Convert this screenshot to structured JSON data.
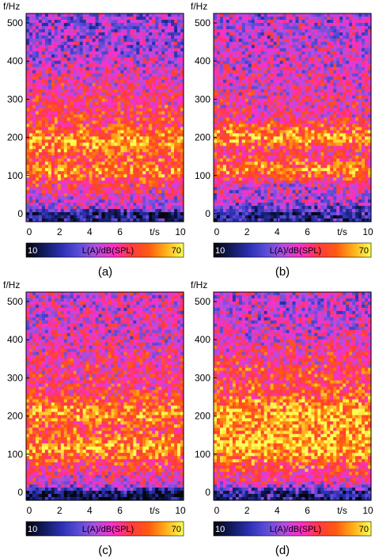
{
  "colorbar": {
    "min_label": "10",
    "label": "L(A)/dB(SPL)",
    "max_label": "70",
    "colors": [
      "#05050c",
      "#101a5a",
      "#2a2fb0",
      "#5a4dd8",
      "#b04fe0",
      "#ff2ec8",
      "#ff3a40",
      "#ff5a10",
      "#ffb01a",
      "#ffff55"
    ]
  },
  "chart_data": [
    {
      "type": "heatmap",
      "caption": "(a)",
      "ylabel": "f/Hz",
      "xlabel": "t/s",
      "xlim": [
        0,
        10
      ],
      "ylim": [
        0,
        500
      ],
      "xticks": [
        0,
        2,
        4,
        6,
        10
      ],
      "yticks": [
        0,
        100,
        200,
        300,
        400,
        500
      ],
      "intensity_profile": [
        {
          "f": 0,
          "level": 0.15
        },
        {
          "f": 15,
          "level": 0.45
        },
        {
          "f": 80,
          "level": 0.65
        },
        {
          "f": 110,
          "level": 0.85
        },
        {
          "f": 150,
          "level": 0.7
        },
        {
          "f": 185,
          "level": 0.9
        },
        {
          "f": 230,
          "level": 0.7
        },
        {
          "f": 300,
          "level": 0.62
        },
        {
          "f": 360,
          "level": 0.55
        },
        {
          "f": 420,
          "level": 0.45
        },
        {
          "f": 500,
          "level": 0.4
        }
      ]
    },
    {
      "type": "heatmap",
      "caption": "(b)",
      "ylabel": "f/Hz",
      "xlabel": "t/s",
      "xlim": [
        0,
        10
      ],
      "ylim": [
        0,
        500
      ],
      "xticks": [
        0,
        2,
        4,
        6,
        10
      ],
      "yticks": [
        0,
        100,
        200,
        300,
        400,
        500
      ],
      "intensity_profile": [
        {
          "f": 0,
          "level": 0.2
        },
        {
          "f": 30,
          "level": 0.45
        },
        {
          "f": 70,
          "level": 0.5
        },
        {
          "f": 115,
          "level": 0.85
        },
        {
          "f": 160,
          "level": 0.6
        },
        {
          "f": 200,
          "level": 0.88
        },
        {
          "f": 250,
          "level": 0.6
        },
        {
          "f": 320,
          "level": 0.55
        },
        {
          "f": 400,
          "level": 0.5
        },
        {
          "f": 500,
          "level": 0.45
        }
      ]
    },
    {
      "type": "heatmap",
      "caption": "(c)",
      "ylabel": "f/Hz",
      "xlabel": "t/s",
      "xlim": [
        0,
        10
      ],
      "ylim": [
        0,
        500
      ],
      "xticks": [
        0,
        2,
        4,
        6,
        10
      ],
      "yticks": [
        0,
        100,
        200,
        300,
        400,
        500
      ],
      "intensity_profile": [
        {
          "f": 0,
          "level": 0.1
        },
        {
          "f": 20,
          "level": 0.5
        },
        {
          "f": 70,
          "level": 0.65
        },
        {
          "f": 115,
          "level": 0.88
        },
        {
          "f": 160,
          "level": 0.7
        },
        {
          "f": 205,
          "level": 0.85
        },
        {
          "f": 260,
          "level": 0.65
        },
        {
          "f": 330,
          "level": 0.6
        },
        {
          "f": 420,
          "level": 0.52
        },
        {
          "f": 500,
          "level": 0.5
        }
      ]
    },
    {
      "type": "heatmap",
      "caption": "(d)",
      "ylabel": "f/Hz",
      "xlabel": "t/s",
      "xlim": [
        0,
        10
      ],
      "ylim": [
        0,
        500
      ],
      "xticks": [
        0,
        2,
        4,
        6,
        10
      ],
      "yticks": [
        0,
        100,
        200,
        300,
        400,
        500
      ],
      "intensity_profile": [
        {
          "f": 0,
          "level": 0.2
        },
        {
          "f": 25,
          "level": 0.55
        },
        {
          "f": 80,
          "level": 0.75
        },
        {
          "f": 115,
          "level": 0.92
        },
        {
          "f": 170,
          "level": 0.85
        },
        {
          "f": 210,
          "level": 0.9
        },
        {
          "f": 260,
          "level": 0.72
        },
        {
          "f": 330,
          "level": 0.65
        },
        {
          "f": 420,
          "level": 0.5
        },
        {
          "f": 500,
          "level": 0.45
        }
      ]
    }
  ]
}
